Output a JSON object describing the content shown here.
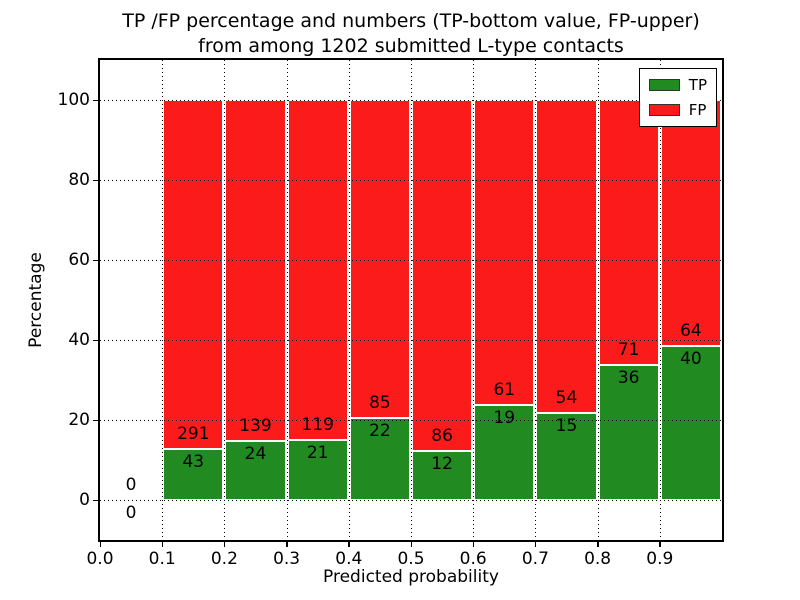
{
  "figure": {
    "title_line1": "TP /FP percentage and numbers (TP-bottom value, FP-upper)",
    "title_line2": "from among 1202 submitted L-type contacts",
    "xlabel": "Predicted probability",
    "ylabel": "Percentage"
  },
  "chart_data": {
    "type": "bar",
    "stacked_percentage": true,
    "title": "TP /FP percentage and numbers (TP-bottom value, FP-upper)\nfrom among 1202 submitted L-type contacts",
    "xlabel": "Predicted probability",
    "ylabel": "Percentage",
    "xlim": [
      0.0,
      1.0
    ],
    "ylim": [
      -10,
      110
    ],
    "xtick_labels": [
      "0.0",
      "0.1",
      "0.2",
      "0.3",
      "0.4",
      "0.5",
      "0.6",
      "0.7",
      "0.8",
      "0.9"
    ],
    "ytick_values": [
      0,
      20,
      40,
      60,
      80,
      100
    ],
    "grid": {
      "style": "dotted",
      "color": "#000000",
      "over_bars": true
    },
    "bin_edges": [
      0.0,
      0.1,
      0.2,
      0.3,
      0.4,
      0.5,
      0.6,
      0.7,
      0.8,
      0.9,
      1.0
    ],
    "series": [
      {
        "name": "TP",
        "color": "#218a21",
        "counts": [
          0,
          43,
          24,
          21,
          22,
          12,
          19,
          15,
          36,
          40
        ]
      },
      {
        "name": "FP",
        "color": "#fb1b1b",
        "counts": [
          0,
          291,
          139,
          119,
          85,
          86,
          61,
          54,
          71,
          64
        ]
      }
    ],
    "annotation_note": "TP count shown below segment boundary, FP count shown above it",
    "total_contacts": 1202,
    "legend": {
      "position": "upper right",
      "entries": [
        {
          "label": "TP",
          "color": "#218a21"
        },
        {
          "label": "FP",
          "color": "#fb1b1b"
        }
      ]
    }
  }
}
